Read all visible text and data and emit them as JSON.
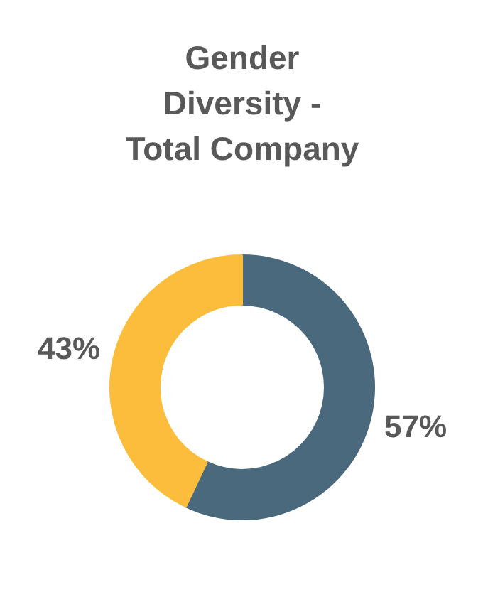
{
  "chart_data": {
    "type": "donut",
    "title": "Gender Diversity - Total Company",
    "categories": [
      null,
      null
    ],
    "values": [
      57,
      43
    ],
    "value_labels": [
      "57%",
      "43%"
    ],
    "colors": [
      "#4a697d",
      "#fbbd3b"
    ]
  }
}
